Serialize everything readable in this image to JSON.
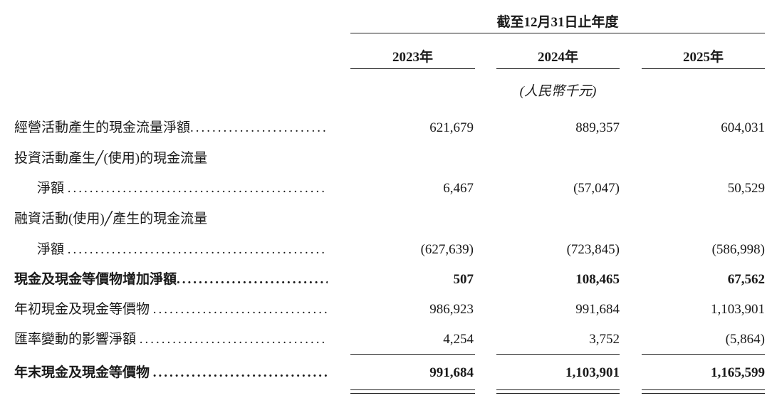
{
  "header": {
    "period": "截至12月31日止年度",
    "years": [
      "2023年",
      "2024年",
      "2025年"
    ],
    "unit": "(人民幣千元)"
  },
  "rows": [
    {
      "label": "經營活動產生的現金流量淨額",
      "values": [
        "621,679",
        "889,357",
        "604,031"
      ]
    },
    {
      "label": "投資活動產生╱(使用)的現金流量",
      "label2": "淨額",
      "values": [
        "6,467",
        "(57,047)",
        "50,529"
      ]
    },
    {
      "label": "融資活動(使用)╱產生的現金流量",
      "label2": "淨額",
      "values": [
        "(627,639)",
        "(723,845)",
        "(586,998)"
      ]
    },
    {
      "label": "現金及現金等價物增加淨額",
      "values": [
        "507",
        "108,465",
        "67,562"
      ],
      "bold": true
    },
    {
      "label": "年初現金及現金等價物",
      "values": [
        "986,923",
        "991,684",
        "1,103,901"
      ]
    },
    {
      "label": "匯率變動的影響淨額",
      "values": [
        "4,254",
        "3,752",
        "(5,864)"
      ]
    },
    {
      "label": "年末現金及現金等價物",
      "values": [
        "991,684",
        "1,103,901",
        "1,165,599"
      ],
      "bold": true
    }
  ]
}
